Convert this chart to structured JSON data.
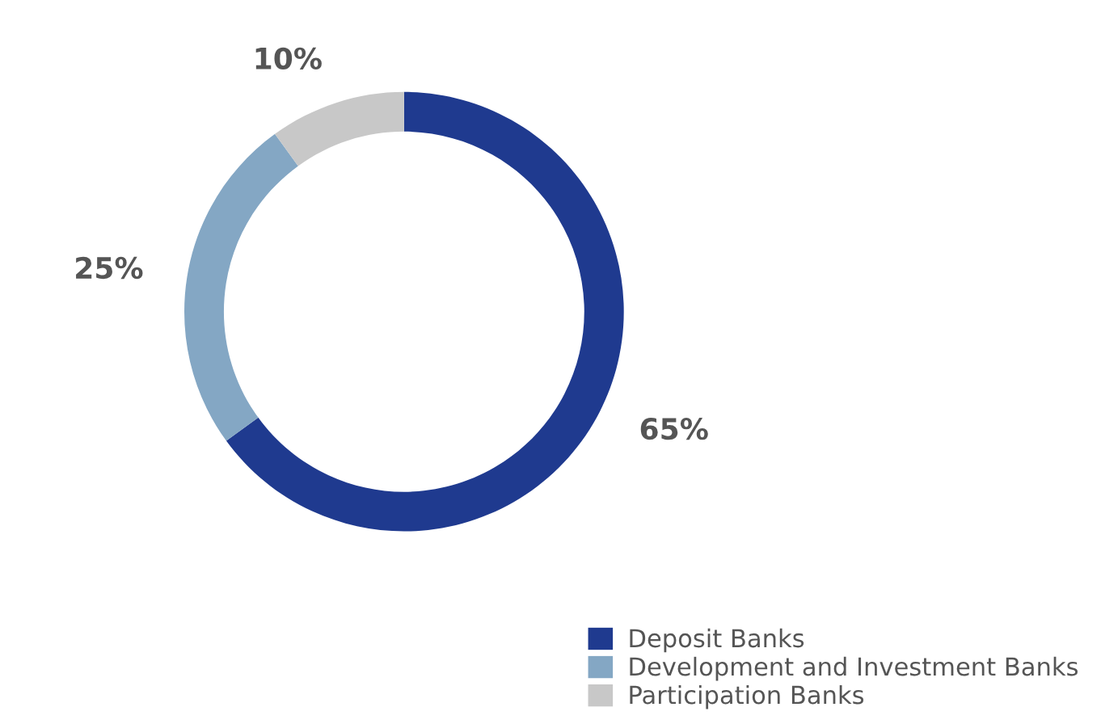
{
  "chart_data": {
    "type": "donut",
    "categories": [
      "Deposit Banks",
      "Development and Investment Banks",
      "Participation Banks"
    ],
    "values": [
      65,
      25,
      10
    ],
    "value_labels": [
      "65%",
      "25%",
      "10%"
    ],
    "colors": [
      "#1f3a8f",
      "#84a7c4",
      "#c8c8c8"
    ],
    "legend": "bottom right"
  }
}
